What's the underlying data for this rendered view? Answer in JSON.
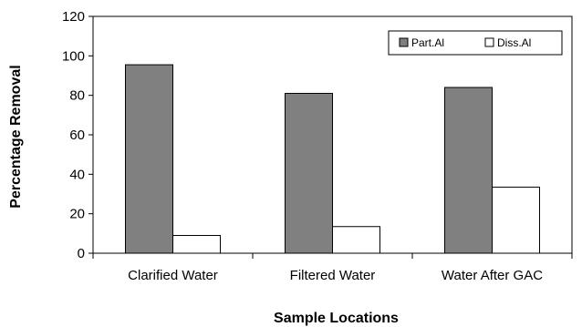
{
  "chart_data": {
    "type": "bar",
    "categories": [
      "Clarified Water",
      "Filtered Water",
      "Water After GAC"
    ],
    "series": [
      {
        "name": "Part.Al",
        "values": [
          95.5,
          81,
          84
        ],
        "color": "#808080"
      },
      {
        "name": "Diss.Al",
        "values": [
          9,
          13.5,
          33.5
        ],
        "color": "#ffffff"
      }
    ],
    "xlabel": "Sample Locations",
    "ylabel": "Percentage Removal",
    "ylim": [
      0,
      120
    ],
    "yticks": [
      0,
      20,
      40,
      60,
      80,
      100,
      120
    ],
    "grid": false,
    "legend_position": "top-right"
  }
}
